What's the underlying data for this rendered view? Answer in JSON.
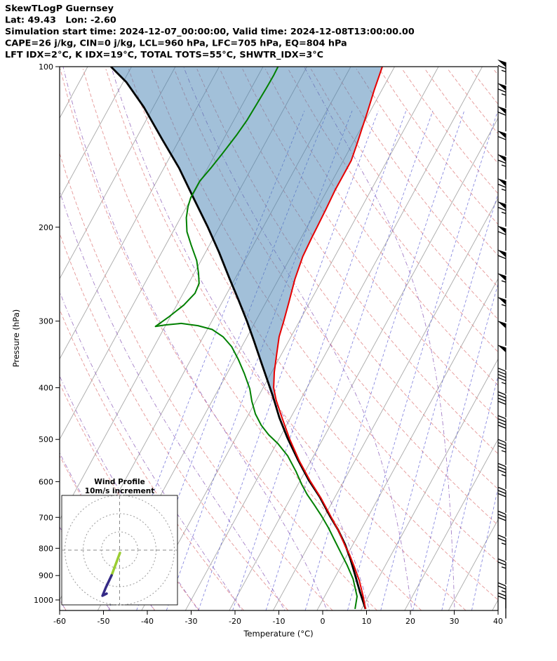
{
  "header": {
    "line1": "SkewTLogP Guernsey",
    "line2": "Lat: 49.43   Lon: -2.60",
    "line3": "Simulation start time: 2024-12-07_00:00:00, Valid time: 2024-12-08T13:00:00.00",
    "line4": "CAPE=26 j/kg, CIN=0 j/kg, LCL=960 hPa, LFC=705 hPa, EQ=804 hPa",
    "line5": "LFT IDX=2°C, K IDX=19°C, TOTAL TOTS=55°C, SHWTR_IDX=3°C"
  },
  "station": {
    "name": "Guernsey",
    "lat": 49.43,
    "lon": -2.6
  },
  "times": {
    "simulation_start": "2024-12-07_00:00:00",
    "valid": "2024-12-08T13:00:00.00"
  },
  "indices": {
    "cape_j_kg": 26,
    "cin_j_kg": 0,
    "lcl_hpa": 960,
    "lfc_hpa": 705,
    "eq_hpa": 804,
    "lft_idx_c": 2,
    "k_idx_c": 19,
    "total_totals_c": 55,
    "shwtr_idx_c": 3
  },
  "inset": {
    "title_line1": "Wind Profile",
    "title_line2": "10m/s increment",
    "circle_radii_ms": [
      10,
      20,
      30
    ],
    "trace_segments": [
      {
        "color": "#9acd32",
        "points_uv": [
          [
            0.2,
            1.5
          ],
          [
            -2.1,
            7.7
          ],
          [
            -4.4,
            13.8
          ]
        ]
      },
      {
        "color": "#352a86",
        "points_uv": [
          [
            -4.4,
            13.8
          ],
          [
            -7.5,
            20.4
          ],
          [
            -9.4,
            25.0
          ],
          [
            -7.1,
            23.8
          ]
        ]
      }
    ]
  },
  "chart_data": {
    "type": "line",
    "subtype": "skewt-logp",
    "title": "SkewTLogP Guernsey",
    "xlabel": "Temperature (°C)",
    "ylabel": "Pressure (hPa)",
    "x_range": [
      -60,
      40
    ],
    "pressure_range": [
      100,
      1046
    ],
    "pressure_ticks": [
      100,
      200,
      300,
      400,
      500,
      600,
      700,
      800,
      900,
      1000
    ],
    "temperature_ticks": [
      -60,
      -50,
      -40,
      -30,
      -20,
      -10,
      0,
      10,
      20,
      30,
      40
    ],
    "skew_degC_per_decade": 66.4,
    "isotherm_range": [
      -130,
      40
    ],
    "isotherm_step": 10,
    "dry_adiabats_thetaC": [
      -60,
      -50,
      -40,
      -30,
      -20,
      -10,
      0,
      10,
      20,
      30,
      40,
      50,
      60,
      70,
      80,
      90,
      100,
      110,
      120,
      130,
      140,
      150,
      160,
      170,
      180,
      190,
      200
    ],
    "moist_adiabats_thetawC": [
      -60,
      -50,
      -40,
      -30,
      -20,
      -10,
      0,
      10,
      20,
      30
    ],
    "mixing_ratio_g_kg": [
      0.05,
      0.1,
      0.2,
      0.4,
      0.8,
      1.5,
      3,
      6,
      10,
      16,
      24,
      36
    ],
    "temperature_profile": [
      [
        1040,
        10.9
      ],
      [
        985,
        8.8
      ],
      [
        921,
        6.0
      ],
      [
        867,
        3.1
      ],
      [
        821,
        0.4
      ],
      [
        792,
        -1.6
      ],
      [
        743,
        -4.9
      ],
      [
        699,
        -8.4
      ],
      [
        645,
        -13.0
      ],
      [
        599,
        -17.6
      ],
      [
        549,
        -22.6
      ],
      [
        500,
        -27.5
      ],
      [
        456,
        -31.9
      ],
      [
        422,
        -35.5
      ],
      [
        400,
        -37.6
      ],
      [
        374,
        -39.4
      ],
      [
        346,
        -41.1
      ],
      [
        321,
        -42.7
      ],
      [
        300,
        -43.6
      ],
      [
        276,
        -44.8
      ],
      [
        250,
        -46.3
      ],
      [
        227,
        -47.3
      ],
      [
        209,
        -47.6
      ],
      [
        200,
        -47.7
      ],
      [
        185,
        -47.9
      ],
      [
        170,
        -48.2
      ],
      [
        157,
        -48.2
      ],
      [
        150,
        -48.2
      ],
      [
        139,
        -49.0
      ],
      [
        131,
        -49.7
      ],
      [
        122,
        -50.5
      ],
      [
        111,
        -51.7
      ],
      [
        100,
        -52.8
      ]
    ],
    "dewpoint_profile": [
      [
        1040,
        8.5
      ],
      [
        985,
        7.4
      ],
      [
        913,
        4.3
      ],
      [
        860,
        1.2
      ],
      [
        816,
        -1.7
      ],
      [
        773,
        -4.7
      ],
      [
        732,
        -7.7
      ],
      [
        695,
        -10.8
      ],
      [
        664,
        -13.7
      ],
      [
        635,
        -16.6
      ],
      [
        607,
        -19.2
      ],
      [
        574,
        -22.1
      ],
      [
        537,
        -25.9
      ],
      [
        509,
        -29.7
      ],
      [
        490,
        -32.9
      ],
      [
        470,
        -35.8
      ],
      [
        448,
        -38.5
      ],
      [
        424,
        -40.9
      ],
      [
        402,
        -42.9
      ],
      [
        376,
        -46.1
      ],
      [
        354,
        -49.2
      ],
      [
        335,
        -52.3
      ],
      [
        321,
        -55.5
      ],
      [
        311,
        -58.9
      ],
      [
        306,
        -62.6
      ],
      [
        303,
        -66.7
      ],
      [
        305,
        -70.2
      ],
      [
        307,
        -72.2
      ],
      [
        295,
        -70.4
      ],
      [
        280,
        -68.4
      ],
      [
        266,
        -67.3
      ],
      [
        255,
        -67.6
      ],
      [
        244,
        -69.0
      ],
      [
        231,
        -71.0
      ],
      [
        216,
        -74.2
      ],
      [
        204,
        -76.8
      ],
      [
        192,
        -78.7
      ],
      [
        183,
        -79.7
      ],
      [
        176,
        -80.2
      ],
      [
        164,
        -80.2
      ],
      [
        155,
        -79.3
      ],
      [
        145,
        -78.4
      ],
      [
        134,
        -77.5
      ],
      [
        126,
        -77.0
      ],
      [
        118,
        -76.8
      ],
      [
        110,
        -76.6
      ],
      [
        104,
        -76.5
      ],
      [
        100,
        -76.6
      ]
    ],
    "parcel_profile": [
      [
        1040,
        10.9
      ],
      [
        964,
        7.4
      ],
      [
        894,
        4.1
      ],
      [
        834,
        1.0
      ],
      [
        787,
        -1.8
      ],
      [
        739,
        -5.2
      ],
      [
        695,
        -8.9
      ],
      [
        641,
        -13.5
      ],
      [
        596,
        -18.1
      ],
      [
        545,
        -23.2
      ],
      [
        497,
        -28.2
      ],
      [
        455,
        -32.6
      ],
      [
        416,
        -36.6
      ],
      [
        387,
        -40.0
      ],
      [
        357,
        -43.8
      ],
      [
        327,
        -47.9
      ],
      [
        300,
        -52.0
      ],
      [
        273,
        -56.7
      ],
      [
        249,
        -61.4
      ],
      [
        223,
        -66.9
      ],
      [
        200,
        -72.6
      ],
      [
        177,
        -79.3
      ],
      [
        155,
        -86.5
      ],
      [
        137,
        -93.9
      ],
      [
        119,
        -102.2
      ],
      [
        107,
        -109.2
      ],
      [
        100,
        -114.7
      ]
    ],
    "cape_region": {
      "tip": [
        420,
        -36.0
      ],
      "top_p": 100,
      "between": [
        "parcel_profile",
        "temperature_profile"
      ]
    },
    "wind_barbs_p_speedkt": [
      [
        1032,
        20
      ],
      [
        988,
        25
      ],
      [
        891,
        25
      ],
      [
        804,
        25
      ],
      [
        725,
        30
      ],
      [
        654,
        30
      ],
      [
        590,
        35
      ],
      [
        532,
        35
      ],
      [
        480,
        40
      ],
      [
        433,
        40
      ],
      [
        391,
        45
      ],
      [
        353,
        50
      ],
      [
        318,
        50
      ],
      [
        287,
        55
      ],
      [
        259,
        55
      ],
      [
        234,
        60
      ],
      [
        211,
        60
      ],
      [
        190,
        65
      ],
      [
        172,
        65
      ],
      [
        155,
        65
      ],
      [
        140,
        60
      ],
      [
        126,
        60
      ],
      [
        114,
        65
      ],
      [
        103,
        65
      ]
    ],
    "colors": {
      "temperature": "#e60000",
      "dewpoint": "#008000",
      "parcel": "#000000",
      "cape_shade": "rgba(70,130,180,0.5)",
      "isotherm": "#a8a8a8",
      "dry_adiabat": "#e08585",
      "moist_adiabat": "#9467bd",
      "mixing_ratio": "#5050d0",
      "wind_barb": "#000000",
      "inset_circle": "#999999"
    },
    "legend": "none",
    "grid": "skewed background lines (isotherms, dry/moist adiabats, mixing ratio)"
  }
}
